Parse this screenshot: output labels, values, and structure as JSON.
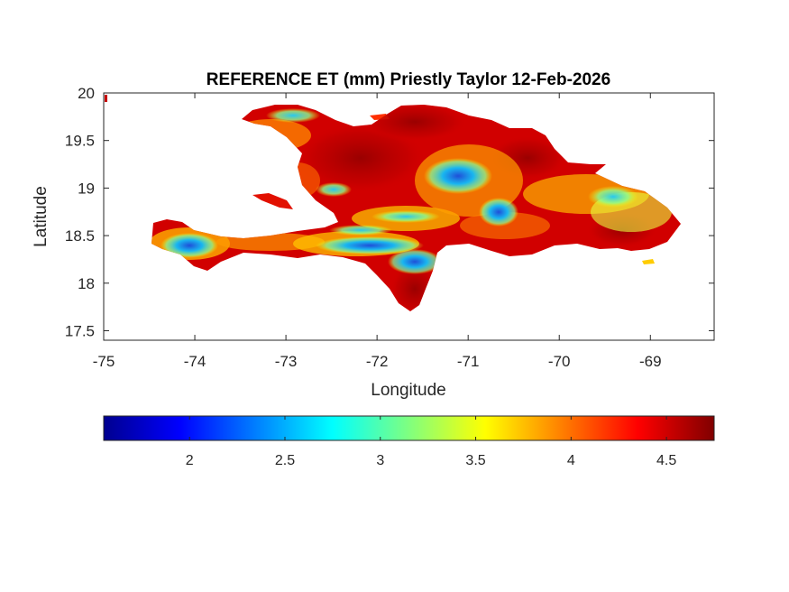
{
  "title": "REFERENCE ET (mm) Priestly Taylor 12-Feb-2026",
  "xlabel": "Longitude",
  "ylabel": "Latitude",
  "x_ticks": [
    "-75",
    "-74",
    "-73",
    "-72",
    "-71",
    "-70",
    "-69"
  ],
  "y_ticks": [
    "20",
    "19.5",
    "19",
    "18.5",
    "18",
    "17.5"
  ],
  "colorbar": {
    "colormap": "jet",
    "ticks": [
      "2",
      "2.5",
      "3",
      "3.5",
      "4",
      "4.5"
    ]
  },
  "colors": {
    "axis": "#262626",
    "background": "#ffffff"
  },
  "chart_data": {
    "type": "heatmap",
    "title": "REFERENCE ET (mm) Priestly Taylor 12-Feb-2026",
    "xlabel": "Longitude",
    "ylabel": "Latitude",
    "xlim": [
      -75,
      -68.3
    ],
    "ylim": [
      17.4,
      20
    ],
    "clim": [
      1.55,
      4.75
    ],
    "colormap": "jet",
    "colorbar_ticks": [
      2,
      2.5,
      3,
      3.5,
      4,
      4.5
    ],
    "grid": false,
    "region": "Hispaniola (Haiti / Dominican Republic)",
    "dominant_range": [
      3.5,
      4.75
    ],
    "low_zones": [
      {
        "lon": -74.0,
        "lat": 18.35,
        "value": 2.0
      },
      {
        "lon": -71.6,
        "lat": 18.3,
        "value": 2.2
      },
      {
        "lon": -71.0,
        "lat": 19.1,
        "value": 2.2
      },
      {
        "lon": -70.6,
        "lat": 18.75,
        "value": 2.4
      },
      {
        "lon": -72.7,
        "lat": 19.8,
        "value": 2.8
      },
      {
        "lon": -69.3,
        "lat": 18.9,
        "value": 3.0
      }
    ]
  }
}
